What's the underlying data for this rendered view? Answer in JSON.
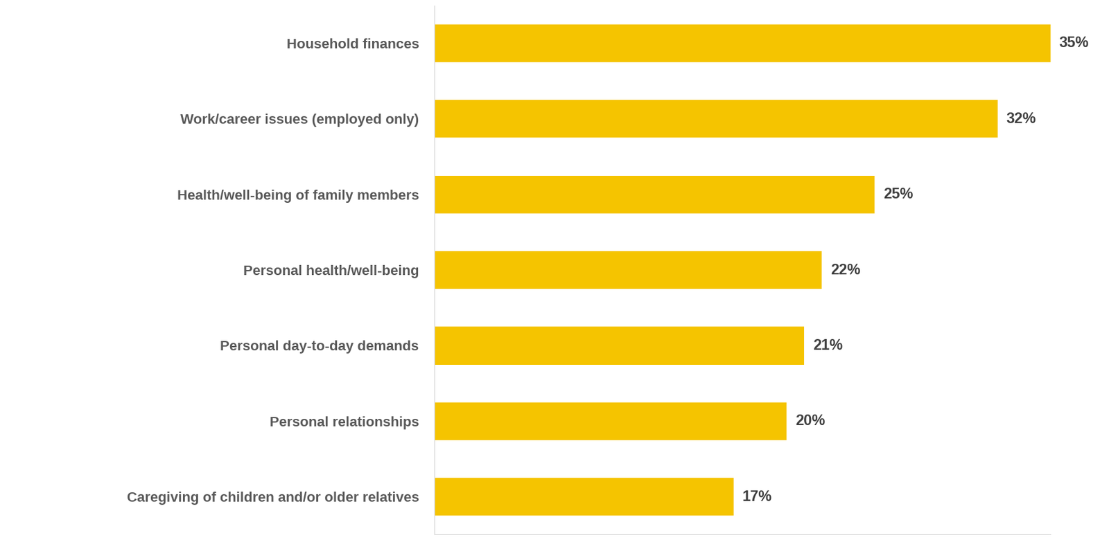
{
  "chart_data": {
    "type": "bar",
    "orientation": "horizontal",
    "categories": [
      "Household finances",
      "Work/career issues (employed only)",
      "Health/well-being of family members",
      "Personal health/well-being",
      "Personal day-to-day demands",
      "Personal relationships",
      "Caregiving of children and/or older relatives"
    ],
    "values": [
      35,
      32,
      25,
      22,
      21,
      20,
      17
    ],
    "value_labels": [
      "35%",
      "32%",
      "25%",
      "22%",
      "21%",
      "20%",
      "17%"
    ],
    "color": "#f5c400",
    "xlim": [
      0,
      35
    ],
    "xticks": [],
    "data_labels": true,
    "tick_labels": "y",
    "grid": false
  }
}
